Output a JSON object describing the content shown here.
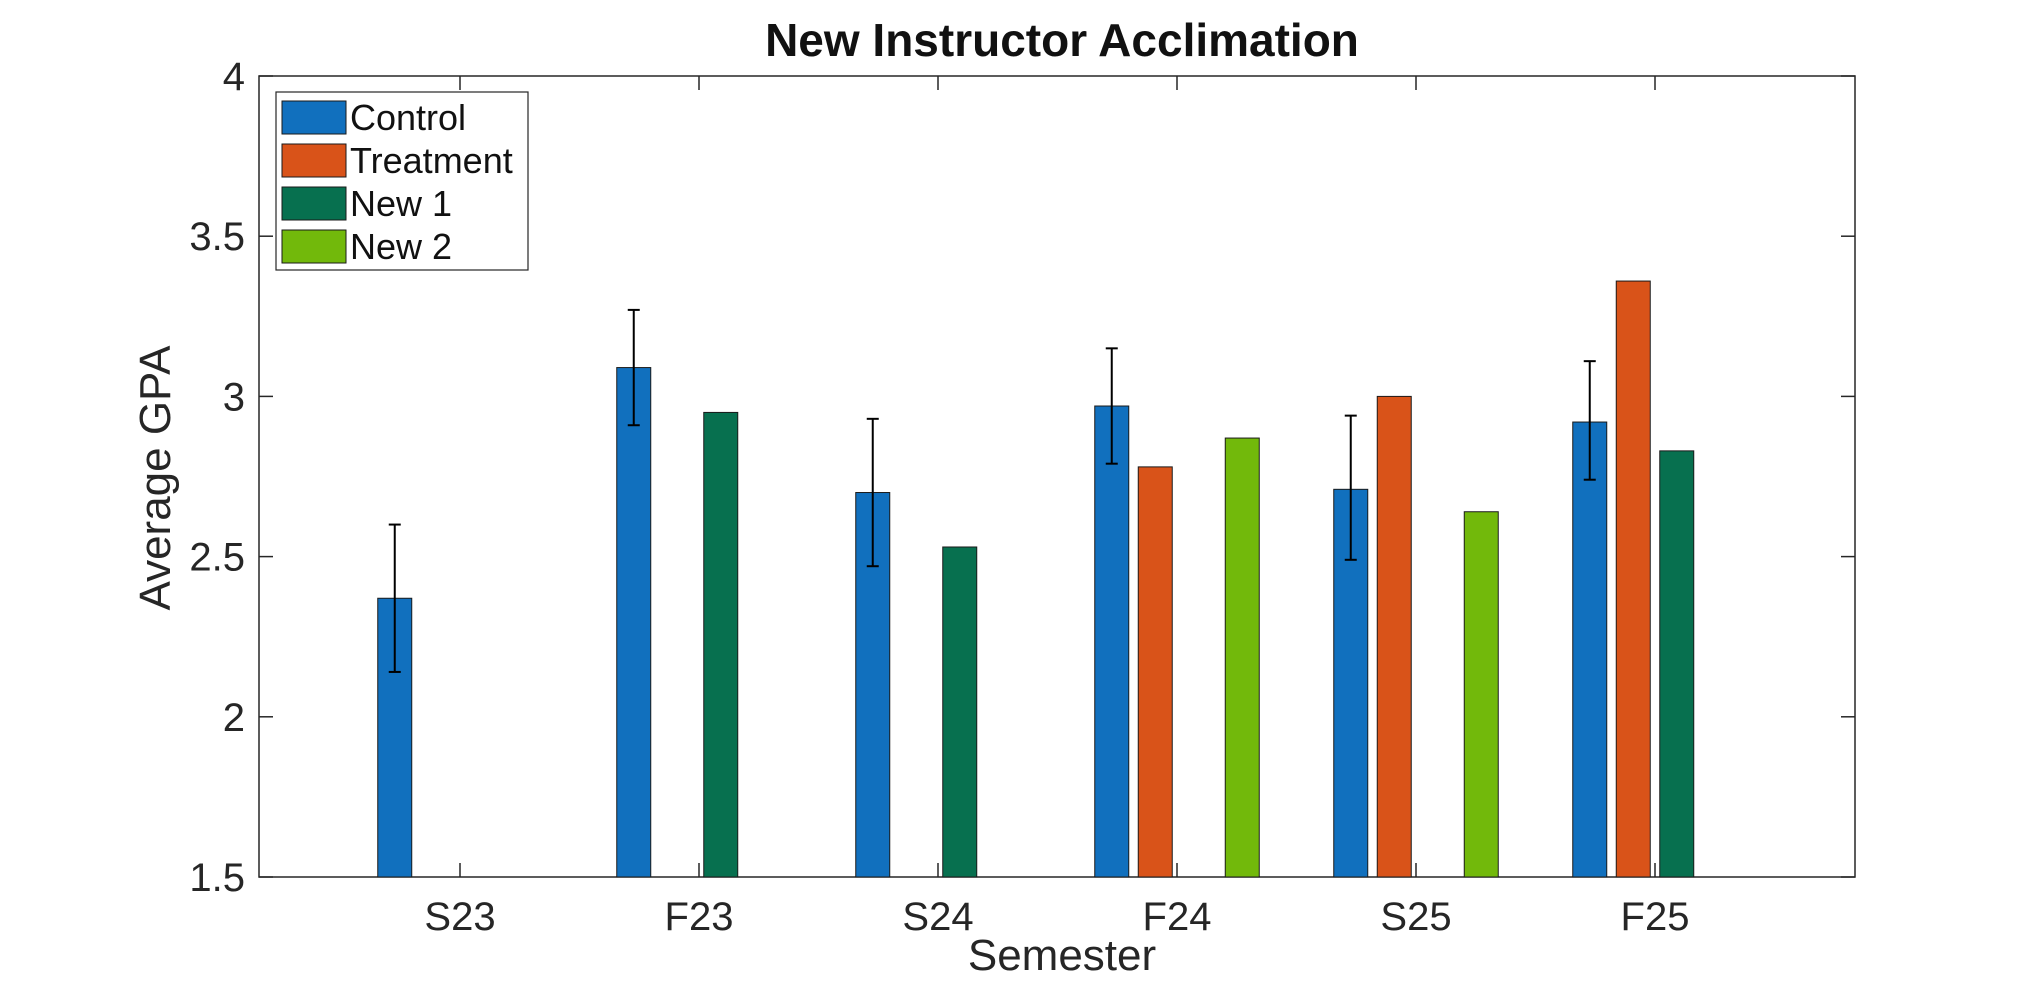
{
  "chart_data": {
    "type": "bar",
    "title": "New Instructor Acclimation",
    "xlabel": "Semester",
    "ylabel": "Average GPA",
    "ylim": [
      1.5,
      4
    ],
    "yticks": [
      "1.5",
      "2",
      "2.5",
      "3",
      "3.5",
      "4"
    ],
    "categories": [
      "S23",
      "F23",
      "S24",
      "F24",
      "S25",
      "F25"
    ],
    "series": [
      {
        "name": "Control",
        "color": "#1170BE",
        "values": [
          2.37,
          3.09,
          2.7,
          2.97,
          2.71,
          2.92
        ],
        "error": [
          [
            2.14,
            2.6
          ],
          [
            2.91,
            3.27
          ],
          [
            2.47,
            2.93
          ],
          [
            2.79,
            3.15
          ],
          [
            2.49,
            2.94
          ],
          [
            2.74,
            3.11
          ]
        ]
      },
      {
        "name": "Treatment",
        "color": "#D95319",
        "values": [
          null,
          null,
          null,
          2.78,
          3.0,
          3.36
        ]
      },
      {
        "name": "New 1",
        "color": "#07704F",
        "values": [
          null,
          2.95,
          2.53,
          null,
          null,
          2.83
        ]
      },
      {
        "name": "New 2",
        "color": "#72B90B",
        "values": [
          null,
          null,
          null,
          2.87,
          2.64,
          null
        ]
      }
    ],
    "grid": false,
    "legend_position": "top-left"
  }
}
